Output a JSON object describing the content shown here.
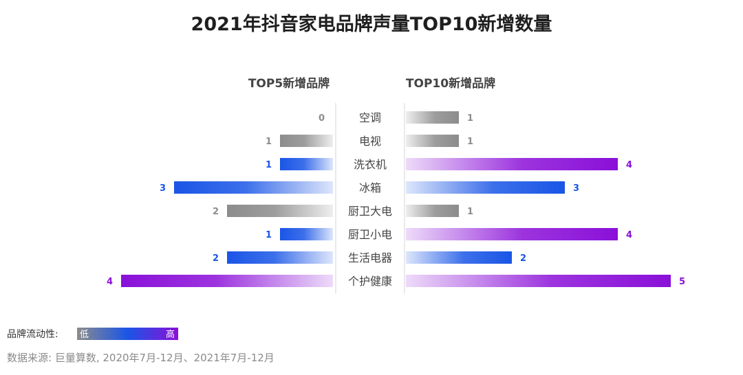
{
  "title": "2021年抖音家电品牌声量TOP10新增数量",
  "chart_data": {
    "type": "bar",
    "title": "2021年抖音家电品牌声量TOP10新增数量",
    "categories": [
      "空调",
      "电视",
      "洗衣机",
      "冰箱",
      "厨卫大电",
      "厨卫小电",
      "生活电器",
      "个护健康"
    ],
    "series": [
      {
        "name": "TOP5新增品牌",
        "values": [
          0,
          1,
          1,
          3,
          2,
          1,
          2,
          4
        ],
        "levels": [
          "low",
          "low",
          "mid",
          "mid",
          "low",
          "mid",
          "mid",
          "high"
        ]
      },
      {
        "name": "TOP10新增品牌",
        "values": [
          1,
          1,
          4,
          3,
          1,
          4,
          2,
          5
        ],
        "levels": [
          "low",
          "low",
          "high",
          "mid",
          "low",
          "high",
          "mid",
          "high"
        ]
      }
    ],
    "xlim": [
      0,
      5
    ],
    "colors": {
      "low": "#8c8c8c",
      "mid": "#1a55e6",
      "high": "#8a10d8"
    }
  },
  "legend": {
    "label": "品牌流动性:",
    "low_label": "低",
    "high_label": "高"
  },
  "source": "数据来源: 巨量算数, 2020年7月-12月、2021年7月-12月"
}
